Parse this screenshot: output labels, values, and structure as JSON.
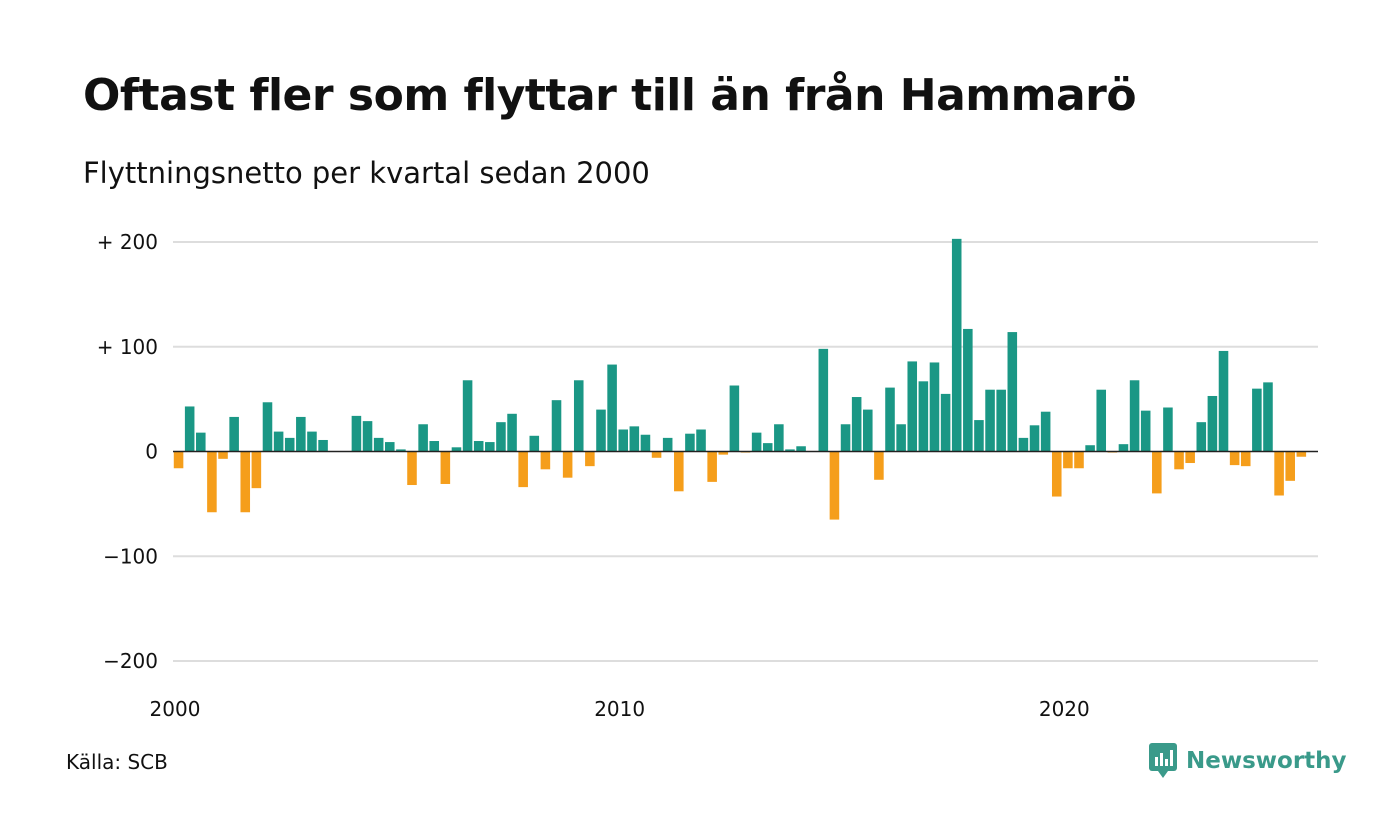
{
  "title": "Oftast fler som flyttar till än från Hammarö",
  "subtitle": "Flyttningsnetto per kvartal sedan 2000",
  "source": "Källa: SCB",
  "brand": {
    "name": "Newsworthy",
    "icon": "newsworthy-logo-icon"
  },
  "colors": {
    "positive": "#1a9785",
    "negative": "#f59e1b",
    "grid": "#dddddd",
    "zero_line": "#222222"
  },
  "chart_data": {
    "type": "bar",
    "title": "Oftast fler som flyttar till än från Hammarö",
    "subtitle": "Flyttningsnetto per kvartal sedan 2000",
    "x_start": 2000,
    "x_step": 0.25,
    "xlim": [
      2000,
      2025.75
    ],
    "ylim": [
      -200,
      200
    ],
    "y_ticks": [
      {
        "value": 200,
        "label": "+ 200"
      },
      {
        "value": 100,
        "label": "+ 100"
      },
      {
        "value": 0,
        "label": "0"
      },
      {
        "value": -100,
        "label": "−100"
      },
      {
        "value": -200,
        "label": "−200"
      }
    ],
    "x_ticks": [
      {
        "value": 2000,
        "label": "2000"
      },
      {
        "value": 2010,
        "label": "2010"
      },
      {
        "value": 2020,
        "label": "2020"
      }
    ],
    "grid": true,
    "values": [
      -16,
      43,
      18,
      -58,
      -7,
      33,
      -58,
      -35,
      47,
      19,
      13,
      33,
      19,
      11,
      0,
      0,
      34,
      29,
      13,
      9,
      2,
      -32,
      26,
      10,
      -31,
      4,
      68,
      10,
      9,
      28,
      36,
      -34,
      15,
      -17,
      49,
      -25,
      68,
      -14,
      40,
      83,
      21,
      24,
      16,
      -6,
      13,
      -38,
      17,
      21,
      -29,
      -3,
      63,
      -1,
      18,
      8,
      26,
      2,
      5,
      0,
      98,
      -65,
      26,
      52,
      40,
      -27,
      61,
      26,
      86,
      67,
      85,
      55,
      203,
      117,
      30,
      59,
      59,
      114,
      13,
      25,
      38,
      -43,
      -16,
      -16,
      6,
      59,
      -1,
      7,
      68,
      39,
      -40,
      42,
      -17,
      -11,
      28,
      53,
      96,
      -13,
      -14,
      60,
      66,
      -42,
      -28,
      -5
    ]
  }
}
